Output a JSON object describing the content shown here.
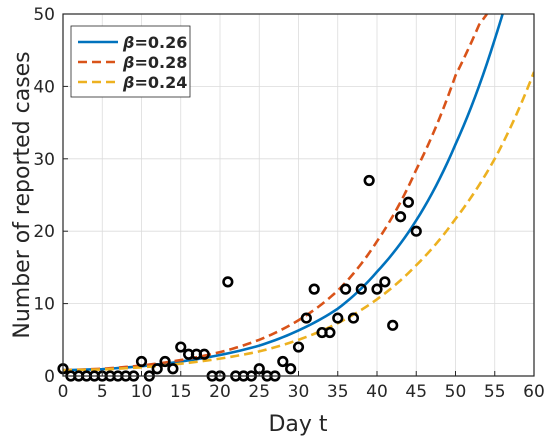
{
  "chart_data": {
    "type": "line",
    "xlabel": "Day t",
    "ylabel": "Number of reported cases",
    "xlim": [
      0,
      60
    ],
    "ylim": [
      0,
      50
    ],
    "xticks": [
      0,
      5,
      10,
      15,
      20,
      25,
      30,
      35,
      40,
      45,
      50,
      55,
      60
    ],
    "yticks": [
      0,
      10,
      20,
      30,
      40,
      50
    ],
    "grid": true,
    "legend_position": "top-left",
    "series": [
      {
        "name": "β=0.26",
        "greek": "β",
        "value_text": "=0.26",
        "color": "#0072BD",
        "style": "solid",
        "x": [
          0,
          5,
          10,
          15,
          20,
          25,
          30,
          35,
          40,
          45,
          50,
          55,
          56
        ],
        "y": [
          0.8,
          0.95,
          1.35,
          2.0,
          2.9,
          4.2,
          6.3,
          9.3,
          14.4,
          21.5,
          32.0,
          46.5,
          50
        ]
      },
      {
        "name": "β=0.28",
        "greek": "β",
        "value_text": "=0.28",
        "color": "#D95319",
        "style": "dashed",
        "x": [
          0,
          5,
          10,
          15,
          20,
          25,
          30,
          35,
          40,
          45,
          50,
          53,
          54
        ],
        "y": [
          0.8,
          1.0,
          1.45,
          2.2,
          3.3,
          5.0,
          7.7,
          11.8,
          18.6,
          28.5,
          41.5,
          48.5,
          50
        ]
      },
      {
        "name": "β=0.24",
        "greek": "β",
        "value_text": "=0.24",
        "color": "#EDB120",
        "style": "dashed",
        "x": [
          0,
          5,
          10,
          15,
          20,
          25,
          30,
          35,
          40,
          45,
          50,
          55,
          60
        ],
        "y": [
          0.8,
          0.9,
          1.2,
          1.7,
          2.4,
          3.4,
          5.0,
          7.3,
          10.6,
          15.3,
          21.7,
          30.0,
          42.0
        ]
      }
    ],
    "observed": {
      "marker": "circle",
      "color": "#000000",
      "x": [
        0,
        1,
        2,
        3,
        4,
        5,
        6,
        7,
        8,
        9,
        10,
        11,
        12,
        13,
        14,
        15,
        16,
        17,
        18,
        19,
        20,
        21,
        22,
        23,
        24,
        25,
        26,
        27,
        28,
        29,
        30,
        31,
        32,
        33,
        34,
        35,
        36,
        37,
        38,
        39,
        40,
        41,
        42,
        43,
        44,
        45
      ],
      "y": [
        1,
        0,
        0,
        0,
        0,
        0,
        0,
        0,
        0,
        0,
        2,
        0,
        1,
        2,
        1,
        4,
        3,
        3,
        3,
        0,
        0,
        13,
        0,
        0,
        0,
        1,
        0,
        0,
        2,
        1,
        4,
        8,
        12,
        6,
        6,
        8,
        12,
        8,
        12,
        27,
        12,
        13,
        7,
        22,
        24,
        20
      ]
    }
  }
}
